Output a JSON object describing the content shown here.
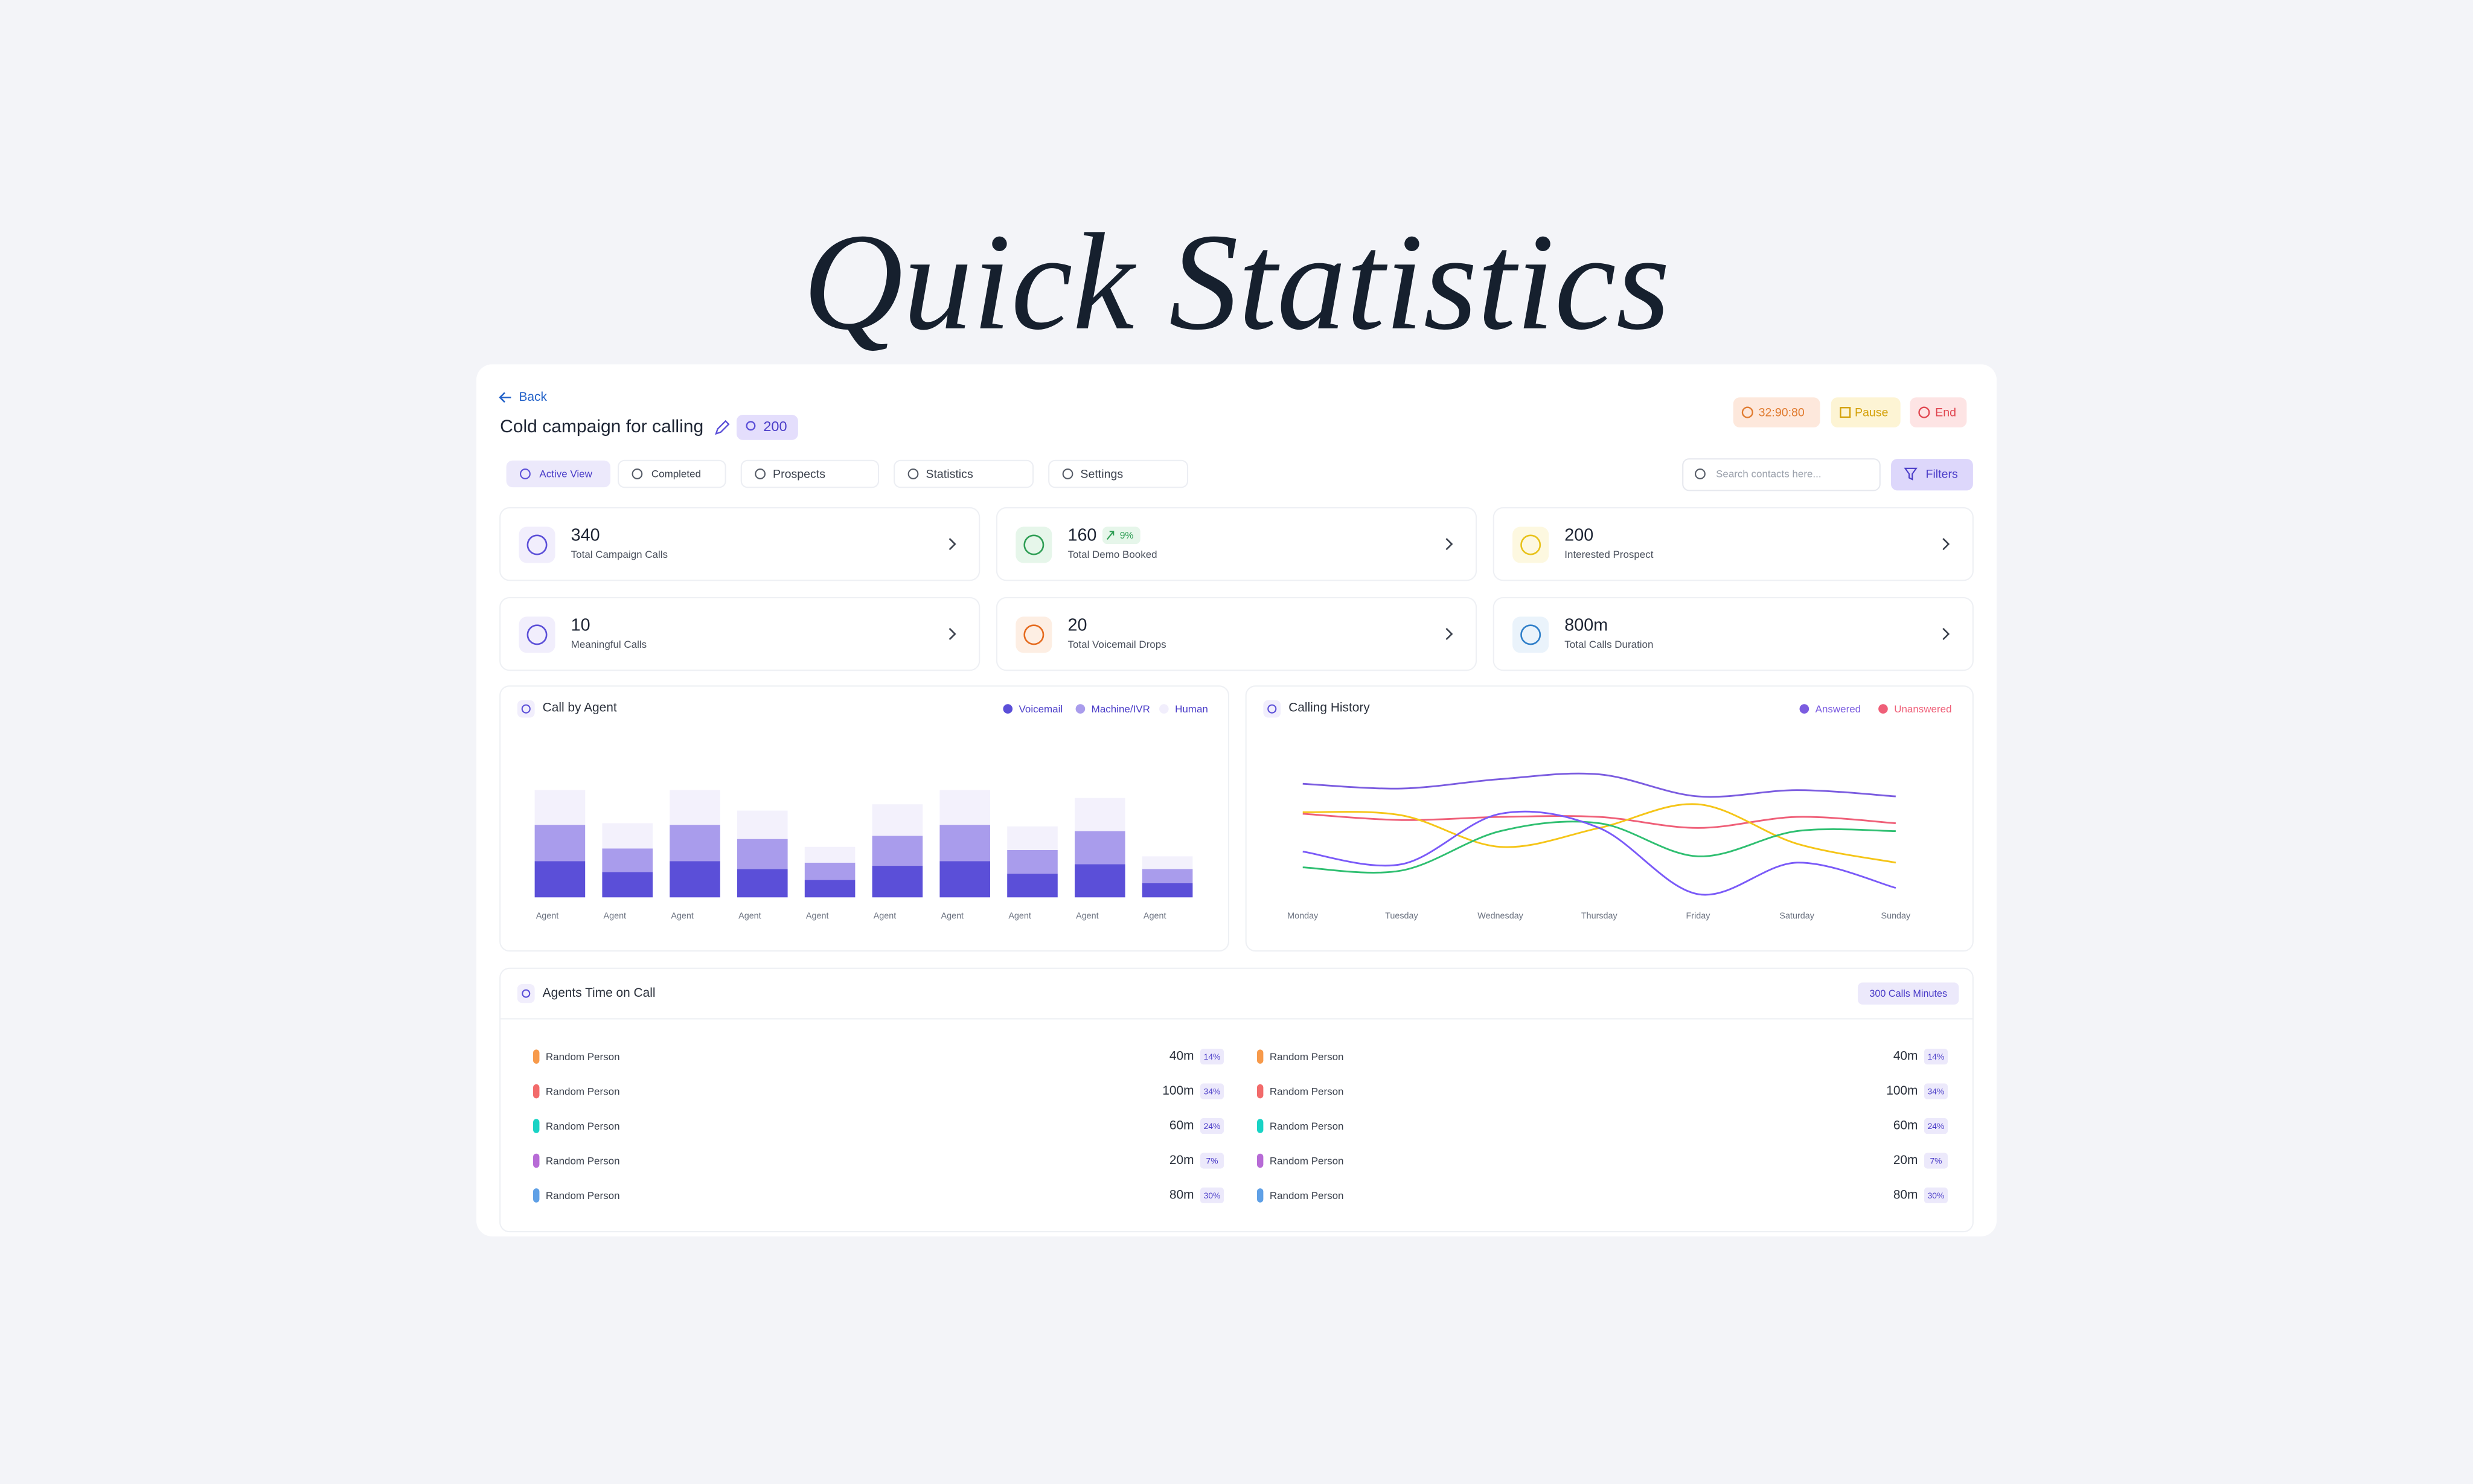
{
  "title": "Quick Statistics",
  "header": {
    "back": "Back",
    "campaign": "Cold campaign for calling",
    "count": "200",
    "timer": "32:90:80",
    "pause": "Pause",
    "end": "End"
  },
  "tabs": [
    "Active View",
    "Completed",
    "Prospects",
    "Statistics",
    "Settings"
  ],
  "search_placeholder": "Search contacts here...",
  "filters": "Filters",
  "stats": [
    {
      "value": "340",
      "label": "Total Campaign Calls"
    },
    {
      "value": "160",
      "label": "Total Demo Booked",
      "change": "9%"
    },
    {
      "value": "200",
      "label": "Interested Prospect"
    },
    {
      "value": "10",
      "label": "Meaningful Calls"
    },
    {
      "value": "20",
      "label": "Total Voicemail Drops"
    },
    {
      "value": "800m",
      "label": "Total Calls Duration"
    }
  ],
  "call_by_agent": {
    "type": "bar",
    "title": "Call by Agent",
    "categories": [
      "Agent",
      "Agent",
      "Agent",
      "Agent",
      "Agent",
      "Agent",
      "Agent",
      "Agent",
      "Agent",
      "Agent"
    ],
    "series": [
      {
        "name": "Voicemail",
        "color": "#5b4fd8",
        "values": [
          23,
          16,
          23,
          18,
          11,
          20,
          23,
          15,
          21,
          9
        ]
      },
      {
        "name": "Machine/IVR",
        "color": "#a99cec",
        "values": [
          23,
          15,
          23,
          19,
          11,
          19,
          23,
          15,
          21,
          9
        ]
      },
      {
        "name": "Human",
        "color": "#f3f1fc",
        "values": [
          22,
          16,
          22,
          18,
          10,
          20,
          22,
          15,
          21,
          8
        ]
      }
    ]
  },
  "calling_history": {
    "type": "line",
    "title": "Calling History",
    "categories": [
      "Monday",
      "Tuesday",
      "Wednesday",
      "Thursday",
      "Friday",
      "Saturday",
      "Sunday"
    ],
    "series": [
      {
        "name": "Answered",
        "color": "#7b5ce0",
        "values": [
          78,
          75,
          81,
          84,
          70,
          74,
          70
        ]
      },
      {
        "name": "Unanswered",
        "color": "#ef5f78",
        "values": [
          59,
          55,
          57,
          57,
          50,
          57,
          53
        ]
      },
      {
        "color": "#f5c518",
        "values": [
          60,
          58,
          38,
          50,
          65,
          40,
          28
        ]
      },
      {
        "color": "#2fbf71",
        "values": [
          25,
          23,
          48,
          53,
          32,
          48,
          48
        ]
      },
      {
        "color": "#7a5af8",
        "values": [
          35,
          27,
          59,
          50,
          8,
          28,
          12
        ]
      }
    ]
  },
  "agents": {
    "title": "Agents Time on Call",
    "badge": "300 Calls Minutes",
    "columns": [
      [
        {
          "name": "Random Person",
          "time": "40m",
          "share": "14%",
          "color": "#f79a4b"
        },
        {
          "name": "Random Person",
          "time": "100m",
          "share": "34%",
          "color": "#f26b6b"
        },
        {
          "name": "Random Person",
          "time": "60m",
          "share": "24%",
          "color": "#19d3c5"
        },
        {
          "name": "Random Person",
          "time": "20m",
          "share": "7%",
          "color": "#b76bd6"
        },
        {
          "name": "Random Person",
          "time": "80m",
          "share": "30%",
          "color": "#5fa0e6"
        }
      ],
      [
        {
          "name": "Random Person",
          "time": "40m",
          "share": "14%",
          "color": "#f79a4b"
        },
        {
          "name": "Random Person",
          "time": "100m",
          "share": "34%",
          "color": "#f26b6b"
        },
        {
          "name": "Random Person",
          "time": "60m",
          "share": "24%",
          "color": "#19d3c5"
        },
        {
          "name": "Random Person",
          "time": "20m",
          "share": "7%",
          "color": "#b76bd6"
        },
        {
          "name": "Random Person",
          "time": "80m",
          "share": "30%",
          "color": "#5fa0e6"
        }
      ]
    ]
  }
}
